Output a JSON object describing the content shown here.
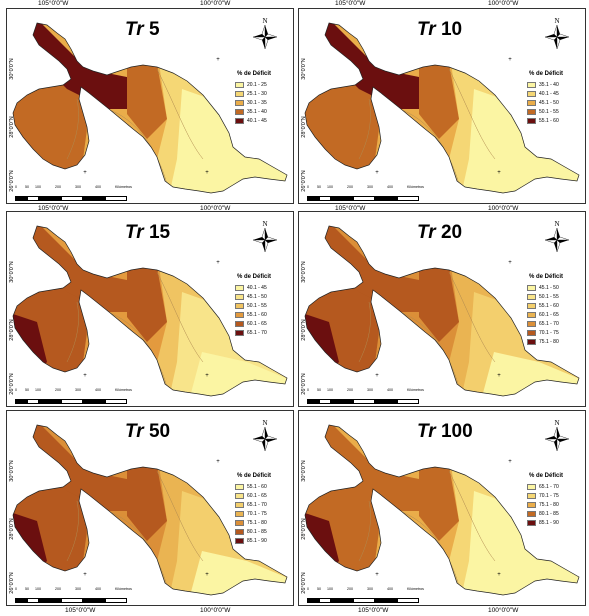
{
  "axes": {
    "lon_top": [
      "105°0'0\"W",
      "100°0'0\"W"
    ],
    "lon_bottom": [
      "105°0'0\"W",
      "100°0'0\"W"
    ],
    "lat": [
      "30°0'0\"N",
      "28°0'0\"N",
      "26°0'0\"N"
    ]
  },
  "north_label": "N",
  "scale_labels": [
    "0",
    "50",
    "100",
    "200",
    "300",
    "400",
    "Kilómetros"
  ],
  "panels": [
    {
      "title_prefix": "Tr",
      "title_num": " 5",
      "legend_title": "% de Déficit",
      "classes": [
        {
          "label": "20.1 - 25",
          "color": "#fbf5a3"
        },
        {
          "label": "25.1 - 30",
          "color": "#f5d775"
        },
        {
          "label": "30.1 - 35",
          "color": "#eaad4a"
        },
        {
          "label": "35.1 - 40",
          "color": "#c26a24"
        },
        {
          "label": "40.1 - 45",
          "color": "#6b0f0f"
        }
      ]
    },
    {
      "title_prefix": "Tr",
      "title_num": " 10",
      "legend_title": "% de Déficit",
      "classes": [
        {
          "label": "35.1 - 40",
          "color": "#fbf5a3"
        },
        {
          "label": "40.1 - 45",
          "color": "#f5d775"
        },
        {
          "label": "45.1 - 50",
          "color": "#eaad4a"
        },
        {
          "label": "50.1 - 55",
          "color": "#c26a24"
        },
        {
          "label": "55.1 - 60",
          "color": "#6b0f0f"
        }
      ]
    },
    {
      "title_prefix": "Tr",
      "title_num": " 15",
      "legend_title": "% de Déficit",
      "classes": [
        {
          "label": "40.1 - 45",
          "color": "#fbf5a3"
        },
        {
          "label": "45.1 - 50",
          "color": "#f8e48a"
        },
        {
          "label": "50.1 - 55",
          "color": "#f0c462"
        },
        {
          "label": "55.1 - 60",
          "color": "#e39a3e"
        },
        {
          "label": "60.1 - 65",
          "color": "#b5591f"
        },
        {
          "label": "65.1 - 70",
          "color": "#6b0f0f"
        }
      ]
    },
    {
      "title_prefix": "Tr",
      "title_num": " 20",
      "legend_title": "% de Déficit",
      "classes": [
        {
          "label": "45.1 - 50",
          "color": "#fbf5a3"
        },
        {
          "label": "50.1 - 55",
          "color": "#f8e48a"
        },
        {
          "label": "55.1 - 60",
          "color": "#f3cf6d"
        },
        {
          "label": "60.1 - 65",
          "color": "#eab452"
        },
        {
          "label": "65.1 - 70",
          "color": "#db8f38"
        },
        {
          "label": "70.1 - 75",
          "color": "#b5591f"
        },
        {
          "label": "75.1 - 80",
          "color": "#6b0f0f"
        }
      ]
    },
    {
      "title_prefix": "Tr",
      "title_num": " 50",
      "legend_title": "% de Déficit",
      "classes": [
        {
          "label": "55.1 - 60",
          "color": "#fbf5a3"
        },
        {
          "label": "60.1 - 65",
          "color": "#f8e48a"
        },
        {
          "label": "65.1 - 70",
          "color": "#f3cf6d"
        },
        {
          "label": "70.1 - 75",
          "color": "#eab452"
        },
        {
          "label": "75.1 - 80",
          "color": "#db8f38"
        },
        {
          "label": "80.1 - 85",
          "color": "#b5591f"
        },
        {
          "label": "85.1 - 90",
          "color": "#6b0f0f"
        }
      ]
    },
    {
      "title_prefix": "Tr",
      "title_num": " 100",
      "legend_title": "% de Déficit",
      "classes": [
        {
          "label": "65.1 - 70",
          "color": "#fbf5a3"
        },
        {
          "label": "70.1 - 75",
          "color": "#f5d775"
        },
        {
          "label": "75.1 - 80",
          "color": "#eaad4a"
        },
        {
          "label": "80.1 - 85",
          "color": "#c26a24"
        },
        {
          "label": "85.1 - 90",
          "color": "#6b0f0f"
        }
      ]
    }
  ]
}
